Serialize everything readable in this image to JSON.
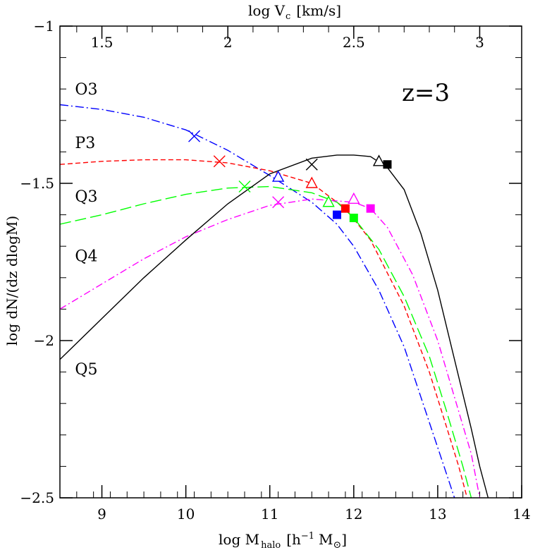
{
  "chart_data": {
    "type": "line",
    "xlabel_main": "log M",
    "xlabel_sub": "halo",
    "xlabel_unit_a": "[h",
    "xlabel_unit_sup": "−1",
    "xlabel_unit_b": "M",
    "xlabel_unit_sun": "⊙",
    "xlabel_unit_c": "]",
    "ylabel": "log dN/(dz dlogM)",
    "top_xlabel_main": "log V",
    "top_xlabel_sub": "c",
    "top_xlabel_unit": "[km/s]",
    "annotation": "z=3",
    "xlim": [
      8.5,
      14
    ],
    "ylim": [
      -2.5,
      -1
    ],
    "x_ticks": [
      9,
      10,
      11,
      12,
      13,
      14
    ],
    "x_tick_labels": [
      "9",
      "10",
      "11",
      "12",
      "13",
      "14"
    ],
    "y_ticks": [
      -2.5,
      -2,
      -1.5,
      -1
    ],
    "y_tick_labels": [
      "−2.5",
      "−2",
      "−1.5",
      "−1"
    ],
    "top_ticks": [
      {
        "label": "1.5",
        "x": 9.0
      },
      {
        "label": "2",
        "x": 10.5
      },
      {
        "label": "2.5",
        "x": 12.0
      },
      {
        "label": "3",
        "x": 13.5
      }
    ],
    "series": [
      {
        "name": "O3",
        "color": "#0000ff",
        "dash": "12 4 2 4",
        "points": [
          [
            8.5,
            -1.25
          ],
          [
            9,
            -1.265
          ],
          [
            9.5,
            -1.29
          ],
          [
            10,
            -1.33
          ],
          [
            10.5,
            -1.395
          ],
          [
            11,
            -1.475
          ],
          [
            11.5,
            -1.56
          ],
          [
            11.8,
            -1.63
          ],
          [
            12,
            -1.7
          ],
          [
            12.3,
            -1.84
          ],
          [
            12.6,
            -2.02
          ],
          [
            12.8,
            -2.18
          ],
          [
            13,
            -2.34
          ],
          [
            13.1,
            -2.42
          ],
          [
            13.2,
            -2.5
          ]
        ],
        "cross": [
          10.1,
          -1.35
        ],
        "triangle": [
          11.1,
          -1.48
        ],
        "square": [
          11.8,
          -1.6
        ],
        "label_pos": [
          8.68,
          -1.2
        ]
      },
      {
        "name": "P3",
        "color": "#ff0000",
        "dash": "7 4",
        "points": [
          [
            8.5,
            -1.44
          ],
          [
            9,
            -1.43
          ],
          [
            9.5,
            -1.425
          ],
          [
            10,
            -1.425
          ],
          [
            10.5,
            -1.435
          ],
          [
            11,
            -1.46
          ],
          [
            11.5,
            -1.5
          ],
          [
            11.9,
            -1.58
          ],
          [
            12.2,
            -1.68
          ],
          [
            12.6,
            -1.89
          ],
          [
            12.9,
            -2.1
          ],
          [
            13.1,
            -2.27
          ],
          [
            13.25,
            -2.4
          ],
          [
            13.35,
            -2.5
          ]
        ],
        "cross": [
          10.4,
          -1.43
        ],
        "triangle": [
          11.5,
          -1.5
        ],
        "square": [
          11.9,
          -1.58
        ],
        "label_pos": [
          8.68,
          -1.37
        ]
      },
      {
        "name": "Q3",
        "color": "#00ff00",
        "dash": "16 6",
        "points": [
          [
            8.5,
            -1.63
          ],
          [
            9,
            -1.6
          ],
          [
            9.5,
            -1.565
          ],
          [
            10,
            -1.535
          ],
          [
            10.5,
            -1.515
          ],
          [
            11,
            -1.51
          ],
          [
            11.5,
            -1.53
          ],
          [
            11.8,
            -1.56
          ],
          [
            12,
            -1.61
          ],
          [
            12.3,
            -1.71
          ],
          [
            12.6,
            -1.86
          ],
          [
            12.9,
            -2.05
          ],
          [
            13.1,
            -2.22
          ],
          [
            13.3,
            -2.4
          ],
          [
            13.4,
            -2.5
          ]
        ],
        "cross": [
          10.7,
          -1.51
        ],
        "triangle": [
          11.7,
          -1.56
        ],
        "square": [
          12.0,
          -1.61
        ],
        "label_pos": [
          8.68,
          -1.54
        ]
      },
      {
        "name": "Q4",
        "color": "#ff00ff",
        "dash": "10 4 2 4",
        "points": [
          [
            8.5,
            -1.9
          ],
          [
            9,
            -1.82
          ],
          [
            9.5,
            -1.74
          ],
          [
            10,
            -1.67
          ],
          [
            10.5,
            -1.615
          ],
          [
            11,
            -1.57
          ],
          [
            11.5,
            -1.55
          ],
          [
            12,
            -1.56
          ],
          [
            12.2,
            -1.58
          ],
          [
            12.4,
            -1.64
          ],
          [
            12.7,
            -1.79
          ],
          [
            13,
            -2.0
          ],
          [
            13.2,
            -2.18
          ],
          [
            13.4,
            -2.36
          ],
          [
            13.5,
            -2.5
          ]
        ],
        "cross": [
          11.1,
          -1.56
        ],
        "triangle": [
          12.0,
          -1.55
        ],
        "square": [
          12.2,
          -1.58
        ],
        "label_pos": [
          8.68,
          -1.73
        ]
      },
      {
        "name": "Q5",
        "color": "#000000",
        "dash": "",
        "points": [
          [
            8.5,
            -2.06
          ],
          [
            9,
            -1.93
          ],
          [
            9.5,
            -1.8
          ],
          [
            10,
            -1.68
          ],
          [
            10.5,
            -1.565
          ],
          [
            11,
            -1.47
          ],
          [
            11.5,
            -1.42
          ],
          [
            11.8,
            -1.41
          ],
          [
            12,
            -1.41
          ],
          [
            12.2,
            -1.415
          ],
          [
            12.4,
            -1.45
          ],
          [
            12.6,
            -1.52
          ],
          [
            12.8,
            -1.66
          ],
          [
            13,
            -1.84
          ],
          [
            13.2,
            -2.06
          ],
          [
            13.4,
            -2.28
          ],
          [
            13.5,
            -2.4
          ],
          [
            13.6,
            -2.5
          ]
        ],
        "cross": [
          11.5,
          -1.44
        ],
        "triangle": [
          12.3,
          -1.43
        ],
        "square": [
          12.4,
          -1.44
        ],
        "label_pos": [
          8.68,
          -2.09
        ]
      }
    ]
  }
}
